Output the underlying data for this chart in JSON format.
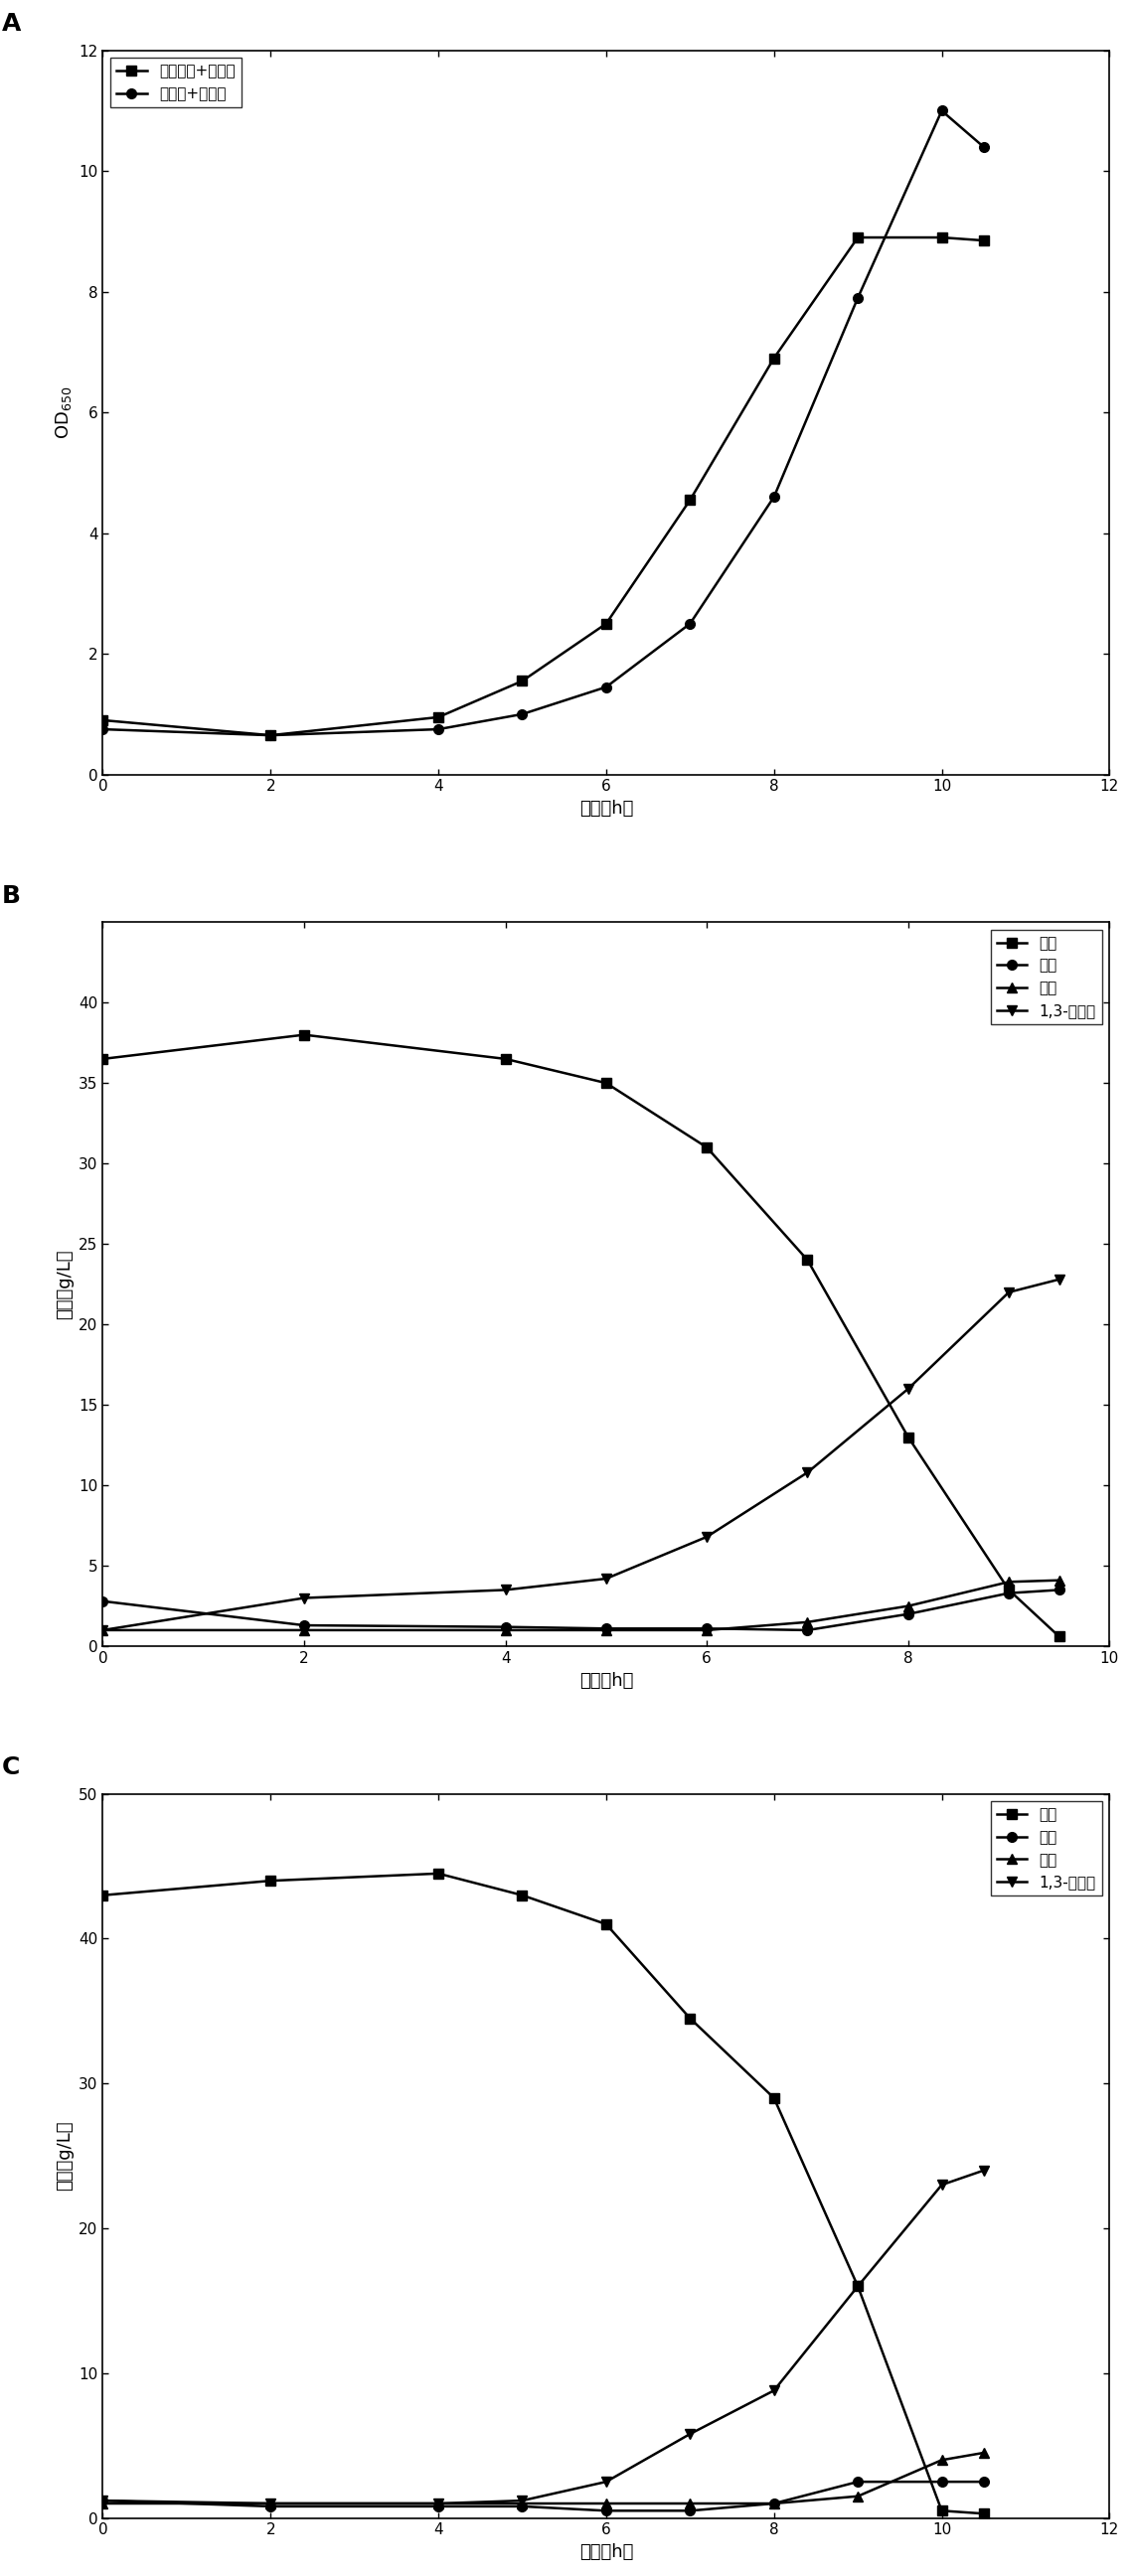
{
  "panel_A": {
    "label": "A",
    "series": [
      {
        "name": "塔釜甘油+蒸馏水",
        "x": [
          0,
          2,
          4,
          5,
          6,
          7,
          8,
          9,
          10,
          10.5
        ],
        "y": [
          0.9,
          0.65,
          0.95,
          1.55,
          2.5,
          4.55,
          6.9,
          8.9,
          8.9,
          8.85
        ],
        "marker": "s",
        "linestyle": "-"
      },
      {
        "name": "粗甘油+自来水",
        "x": [
          0,
          2,
          4,
          5,
          6,
          7,
          8,
          9,
          10,
          10.5
        ],
        "y": [
          0.75,
          0.65,
          0.75,
          1.0,
          1.45,
          2.5,
          4.6,
          7.9,
          11.0,
          10.4
        ],
        "marker": "o",
        "linestyle": "-"
      }
    ],
    "xlabel": "时间（h）",
    "ylabel": "OD$_{650}$",
    "xlim": [
      0,
      12
    ],
    "ylim": [
      0,
      12
    ],
    "xticks": [
      0,
      2,
      4,
      6,
      8,
      10,
      12
    ],
    "yticks": [
      0,
      2,
      4,
      6,
      8,
      10,
      12
    ],
    "legend_loc": "upper left"
  },
  "panel_B": {
    "label": "B",
    "series": [
      {
        "name": "甘油",
        "x": [
          0,
          2,
          4,
          5,
          6,
          7,
          8,
          9,
          9.5
        ],
        "y": [
          36.5,
          38.0,
          36.5,
          35.0,
          31.0,
          24.0,
          13.0,
          3.5,
          0.6
        ],
        "marker": "s",
        "linestyle": "-"
      },
      {
        "name": "乙酸",
        "x": [
          0,
          2,
          4,
          5,
          6,
          7,
          8,
          9,
          9.5
        ],
        "y": [
          2.8,
          1.3,
          1.2,
          1.1,
          1.1,
          1.0,
          2.0,
          3.3,
          3.5
        ],
        "marker": "o",
        "linestyle": "-"
      },
      {
        "name": "丁酸",
        "x": [
          0,
          2,
          4,
          5,
          6,
          7,
          8,
          9,
          9.5
        ],
        "y": [
          1.0,
          1.0,
          1.0,
          1.0,
          1.0,
          1.5,
          2.5,
          4.0,
          4.1
        ],
        "marker": "^",
        "linestyle": "-"
      },
      {
        "name": "1,3-丙二醇",
        "x": [
          0,
          2,
          4,
          5,
          6,
          7,
          8,
          9,
          9.5
        ],
        "y": [
          1.0,
          3.0,
          3.5,
          4.2,
          6.8,
          10.8,
          16.0,
          22.0,
          22.8
        ],
        "marker": "v",
        "linestyle": "-"
      }
    ],
    "xlabel": "时间（h）",
    "ylabel": "浓度（g/L）",
    "xlim": [
      0,
      10
    ],
    "ylim": [
      0,
      45
    ],
    "xticks": [
      0,
      2,
      4,
      6,
      8,
      10
    ],
    "yticks": [
      0,
      5,
      10,
      15,
      20,
      25,
      30,
      35,
      40
    ],
    "legend_loc": "upper right"
  },
  "panel_C": {
    "label": "C",
    "series": [
      {
        "name": "甘油",
        "x": [
          0,
          2,
          4,
          5,
          6,
          7,
          8,
          9,
          10,
          10.5
        ],
        "y": [
          43.0,
          44.0,
          44.5,
          43.0,
          41.0,
          34.5,
          29.0,
          16.0,
          0.5,
          0.3
        ],
        "marker": "s",
        "linestyle": "-"
      },
      {
        "name": "乙酸",
        "x": [
          0,
          2,
          4,
          5,
          6,
          7,
          8,
          9,
          10,
          10.5
        ],
        "y": [
          1.2,
          0.8,
          0.8,
          0.8,
          0.5,
          0.5,
          1.0,
          2.5,
          2.5,
          2.5
        ],
        "marker": "o",
        "linestyle": "-"
      },
      {
        "name": "丁酸",
        "x": [
          0,
          2,
          4,
          5,
          6,
          7,
          8,
          9,
          10,
          10.5
        ],
        "y": [
          1.0,
          1.0,
          1.0,
          1.0,
          1.0,
          1.0,
          1.0,
          1.5,
          4.0,
          4.5
        ],
        "marker": "^",
        "linestyle": "-"
      },
      {
        "name": "1,3-丙二醇",
        "x": [
          0,
          2,
          4,
          5,
          6,
          7,
          8,
          9,
          10,
          10.5
        ],
        "y": [
          1.2,
          1.0,
          1.0,
          1.2,
          2.5,
          5.8,
          8.8,
          16.0,
          23.0,
          24.0
        ],
        "marker": "v",
        "linestyle": "-"
      }
    ],
    "xlabel": "时间（h）",
    "ylabel": "浓度（g/L）",
    "xlim": [
      0,
      12
    ],
    "ylim": [
      0,
      50
    ],
    "xticks": [
      0,
      2,
      4,
      6,
      8,
      10,
      12
    ],
    "yticks": [
      0,
      10,
      20,
      30,
      40,
      50
    ],
    "legend_loc": "upper right"
  },
  "line_color": "#000000",
  "marker_size": 7,
  "linewidth": 1.8,
  "font_size_label": 13,
  "font_size_tick": 11,
  "font_size_legend": 11,
  "font_size_panel_label": 18
}
